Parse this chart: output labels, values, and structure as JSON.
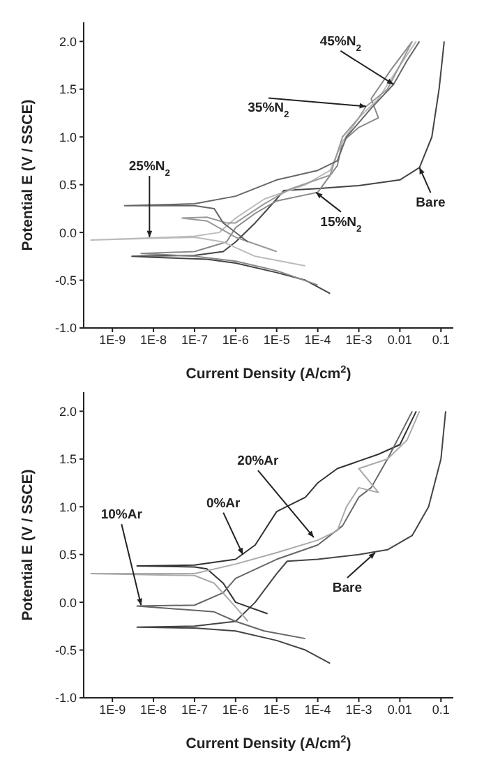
{
  "chart_data": [
    {
      "type": "line",
      "xlabel": "Current Density (A/cm$^{2}$)",
      "ylabel": "Potential E (V / SSCE)",
      "log": "x",
      "marker": "none",
      "line_style": "solid",
      "xlim": [
        2e-10,
        0.2
      ],
      "xticks": [
        {
          "value": 1e-09,
          "label": "1E-9"
        },
        {
          "value": 1e-08,
          "label": "1E-8"
        },
        {
          "value": 1e-07,
          "label": "1E-7"
        },
        {
          "value": 1e-06,
          "label": "1E-6"
        },
        {
          "value": 1e-05,
          "label": "1E-5"
        },
        {
          "value": 0.0001,
          "label": "1E-4"
        },
        {
          "value": 0.001,
          "label": "1E-3"
        },
        {
          "value": 0.01,
          "label": "0.01"
        },
        {
          "value": 0.1,
          "label": "0.1"
        }
      ],
      "ylim": [
        -1.0,
        2.2
      ],
      "yticks": [
        {
          "value": -1,
          "label": "-1.0"
        },
        -0.5,
        {
          "value": 0,
          "label": "0.0"
        },
        0.5,
        {
          "value": 1,
          "label": "1.0"
        },
        1.5,
        {
          "value": 2,
          "label": "2.0"
        }
      ],
      "series": [
        {
          "color": "#444444",
          "x": [
            0.0002,
            5e-05,
            1e-05,
            1e-06,
            2e-07,
            1e-08,
            3e-09,
            1e-07,
            5e-07,
            1e-06,
            3e-06,
            1e-05,
            1.5e-05,
            0.0001,
            0.001,
            0.01,
            0.03,
            0.06,
            0.09,
            0.12
          ],
          "values": [
            -0.64,
            -0.5,
            -0.42,
            -0.32,
            -0.28,
            -0.26,
            -0.25,
            -0.24,
            -0.2,
            -0.1,
            0.1,
            0.35,
            0.44,
            0.46,
            0.49,
            0.55,
            0.68,
            1.0,
            1.5,
            2.0
          ]
        },
        {
          "color": "#888888",
          "x": [
            0.0001,
            1e-05,
            1e-06,
            1e-07,
            5e-09,
            1e-07,
            6e-07,
            1e-06,
            3e-06,
            1e-05,
            0.0001,
            0.0003,
            0.0004,
            0.001,
            0.003,
            0.002,
            0.006,
            0.02
          ],
          "values": [
            -0.55,
            -0.4,
            -0.3,
            -0.25,
            -0.22,
            -0.2,
            -0.1,
            0.05,
            0.2,
            0.33,
            0.42,
            0.7,
            0.95,
            1.1,
            1.2,
            1.4,
            1.7,
            2.0
          ]
        },
        {
          "color": "#bbbbbb",
          "x": [
            5e-05,
            3e-06,
            5e-07,
            1e-07,
            3e-10,
            1e-07,
            4e-07,
            1e-06,
            5e-06,
            5e-05,
            0.0002,
            0.0004,
            0.001,
            0.003,
            0.01,
            0.025
          ],
          "values": [
            -0.35,
            -0.25,
            -0.1,
            -0.05,
            -0.08,
            -0.04,
            0.0,
            0.15,
            0.35,
            0.5,
            0.65,
            0.95,
            1.2,
            1.4,
            1.75,
            2.0
          ]
        },
        {
          "color": "#999999",
          "x": [
            1e-05,
            1e-06,
            2e-07,
            5e-08,
            2e-07,
            6e-07,
            1e-06,
            5e-06,
            2e-05,
            0.0002,
            0.0004,
            0.001,
            0.0015,
            0.005,
            0.02
          ],
          "values": [
            -0.2,
            -0.05,
            0.12,
            0.15,
            0.16,
            0.1,
            0.1,
            0.3,
            0.45,
            0.6,
            1.0,
            1.2,
            1.32,
            1.5,
            2.0
          ]
        },
        {
          "color": "#666666",
          "x": [
            2e-06,
            5e-07,
            3e-07,
            1e-07,
            2e-09,
            1e-07,
            1e-06,
            1e-05,
            0.0001,
            0.0003,
            0.0005,
            0.002,
            0.007,
            0.015,
            0.03
          ],
          "values": [
            -0.1,
            0.1,
            0.25,
            0.28,
            0.28,
            0.3,
            0.38,
            0.55,
            0.65,
            0.75,
            1.0,
            1.3,
            1.55,
            1.8,
            2.0
          ]
        }
      ],
      "annotations": [
        {
          "text": "45%N$_{2}$",
          "x": 0.007,
          "y": 1.55
        },
        {
          "text": "35%N$_{2}$",
          "x": 0.0015,
          "y": 1.32
        },
        {
          "text": "25%N$_{2}$",
          "x": 8e-09,
          "y": -0.05
        },
        {
          "text": "15%N$_{2}$",
          "x": 9e-05,
          "y": 0.42
        },
        {
          "text": "Bare",
          "x": 0.03,
          "y": 0.68
        }
      ]
    },
    {
      "type": "line",
      "xlabel": "Current Density (A/cm$^{2}$)",
      "ylabel": "Potential E (V / SSCE)",
      "log": "x",
      "marker": "none",
      "line_style": "solid",
      "xlim": [
        2e-10,
        0.2
      ],
      "xticks": [
        {
          "value": 1e-09,
          "label": "1E-9"
        },
        {
          "value": 1e-08,
          "label": "1E-8"
        },
        {
          "value": 1e-07,
          "label": "1E-7"
        },
        {
          "value": 1e-06,
          "label": "1E-6"
        },
        {
          "value": 1e-05,
          "label": "1E-5"
        },
        {
          "value": 0.0001,
          "label": "1E-4"
        },
        {
          "value": 0.001,
          "label": "1E-3"
        },
        {
          "value": 0.01,
          "label": "0.01"
        },
        {
          "value": 0.1,
          "label": "0.1"
        }
      ],
      "ylim": [
        -1.0,
        2.2
      ],
      "yticks": [
        {
          "value": -1,
          "label": "-1.0"
        },
        -0.5,
        {
          "value": 0,
          "label": "0.0"
        },
        0.5,
        {
          "value": 1,
          "label": "1.0"
        },
        1.5,
        {
          "value": 2,
          "label": "2.0"
        }
      ],
      "series": [
        {
          "color": "#444444",
          "x": [
            0.0002,
            5e-05,
            1e-05,
            1e-06,
            1e-07,
            4e-09,
            1e-07,
            1e-06,
            3e-06,
            1e-05,
            1.8e-05,
            0.0001,
            0.001,
            0.005,
            0.02,
            0.05,
            0.1,
            0.13
          ],
          "values": [
            -0.64,
            -0.5,
            -0.4,
            -0.3,
            -0.27,
            -0.26,
            -0.25,
            -0.2,
            0.0,
            0.3,
            0.43,
            0.45,
            0.5,
            0.55,
            0.7,
            1.0,
            1.5,
            2.0
          ]
        },
        {
          "color": "#333333",
          "x": [
            6e-06,
            1e-06,
            5e-07,
            2e-07,
            1e-07,
            4e-09,
            1e-07,
            1e-06,
            3e-06,
            1e-05,
            5e-05,
            0.0001,
            0.0003,
            0.003,
            0.01,
            0.025
          ],
          "values": [
            -0.12,
            0.0,
            0.2,
            0.35,
            0.37,
            0.38,
            0.39,
            0.45,
            0.6,
            0.95,
            1.1,
            1.25,
            1.4,
            1.55,
            1.65,
            2.0
          ]
        },
        {
          "color": "#666666",
          "x": [
            5e-05,
            5e-06,
            1e-06,
            3e-07,
            4e-09,
            1e-07,
            5e-07,
            1e-06,
            1e-05,
            0.0001,
            0.0004,
            0.001,
            0.002,
            0.005,
            0.02
          ],
          "values": [
            -0.38,
            -0.3,
            -0.2,
            -0.1,
            -0.04,
            -0.03,
            0.1,
            0.25,
            0.45,
            0.6,
            0.8,
            1.1,
            1.2,
            1.5,
            2.0
          ]
        },
        {
          "color": "#aaaaaa",
          "x": [
            2e-06,
            1e-06,
            3e-07,
            1e-07,
            3e-10,
            1e-07,
            1e-06,
            1e-05,
            0.0001,
            0.0003,
            0.0005,
            0.001,
            0.003,
            0.001,
            0.005,
            0.015,
            0.03
          ],
          "values": [
            -0.2,
            -0.05,
            0.2,
            0.28,
            0.3,
            0.3,
            0.4,
            0.52,
            0.65,
            0.75,
            1.0,
            1.2,
            1.15,
            1.4,
            1.5,
            1.7,
            2.0
          ]
        }
      ],
      "annotations": [
        {
          "text": "10%Ar",
          "x": 5e-09,
          "y": -0.03
        },
        {
          "text": "0%Ar",
          "x": 1.5e-06,
          "y": 0.5
        },
        {
          "text": "20%Ar",
          "x": 8e-05,
          "y": 0.68
        },
        {
          "text": "Bare",
          "x": 0.0025,
          "y": 0.52
        }
      ]
    }
  ]
}
